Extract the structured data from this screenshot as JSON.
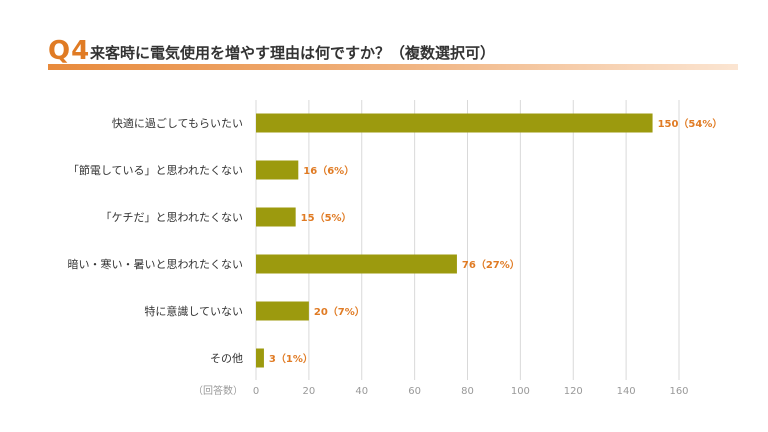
{
  "header": {
    "q_number": "Q4",
    "question": "来客時に電気使用を増やす理由は何ですか？（複数選択可）"
  },
  "colors": {
    "bar": "#9c9a0e",
    "accent": "#e07b24",
    "grid": "#d9d9d9",
    "axis_text": "#999999"
  },
  "chart_data": {
    "type": "bar",
    "orientation": "horizontal",
    "categories": [
      "快適に過ごしてもらいたい",
      "「節電している」と思われたくない",
      "「ケチだ」と思われたくない",
      "暗い・寒い・暑いと思われたくない",
      "特に意識していない",
      "その他"
    ],
    "values": [
      150,
      16,
      15,
      76,
      20,
      3
    ],
    "value_labels": [
      "150（54%）",
      "16（6%）",
      "15（5%）",
      "76（27%）",
      "20（7%）",
      "3（1%）"
    ],
    "xlabel": "（回答数）",
    "xlim": [
      0,
      160
    ],
    "ticks": [
      0,
      20,
      40,
      60,
      80,
      100,
      120,
      140,
      160
    ],
    "tick_labels": [
      "0",
      "20",
      "40",
      "60",
      "80",
      "100",
      "120",
      "140",
      "160"
    ],
    "grid": true
  }
}
